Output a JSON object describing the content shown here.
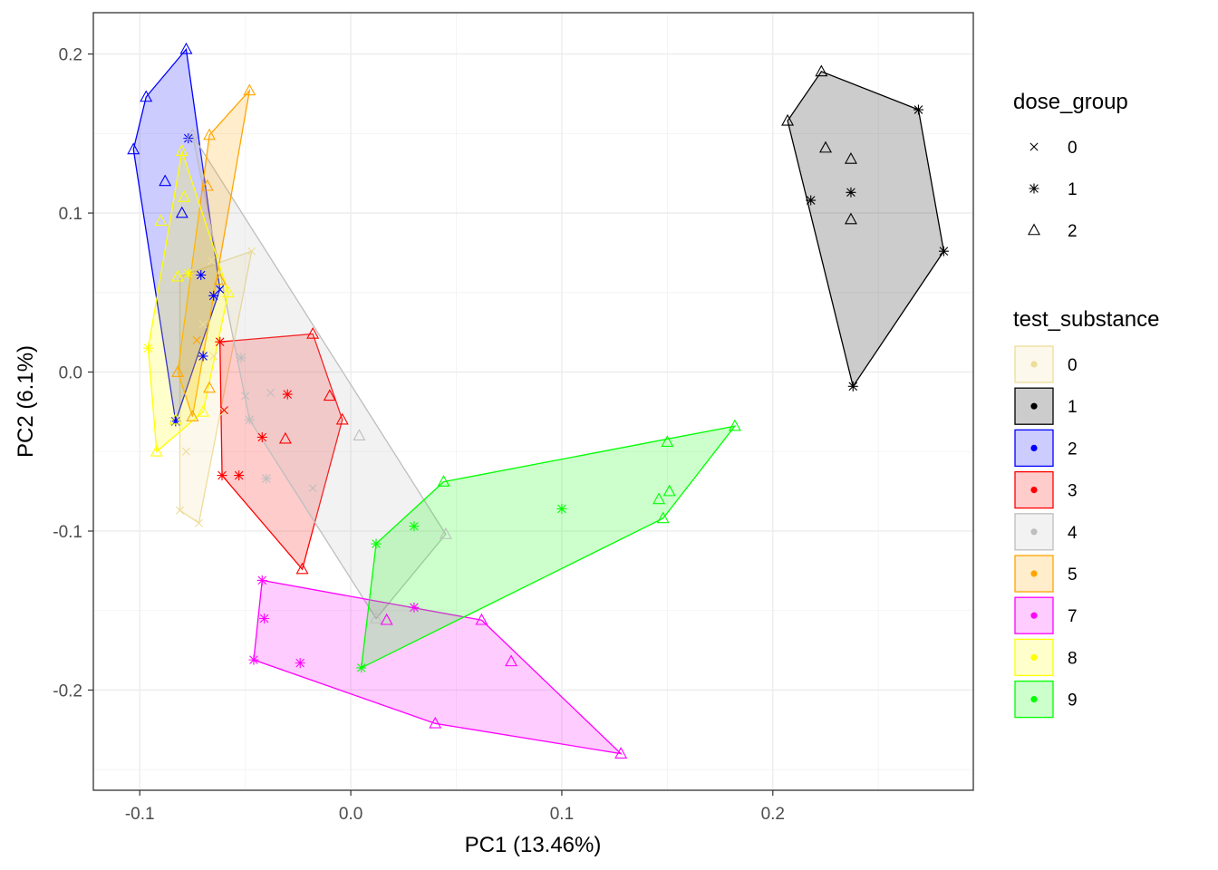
{
  "chart_data": {
    "type": "scatter",
    "xlabel": "PC1 (13.46%)",
    "ylabel": "PC2 (6.1%)",
    "xlim": [
      -0.122,
      0.295
    ],
    "ylim": [
      -0.263,
      0.226
    ],
    "x_ticks": [
      -0.1,
      0.0,
      0.1,
      0.2
    ],
    "x_tick_labels": [
      "-0.1",
      "0.0",
      "0.1",
      "0.2"
    ],
    "y_ticks": [
      -0.2,
      -0.1,
      0.0,
      0.1,
      0.2
    ],
    "y_tick_labels": [
      "-0.2",
      "-0.1",
      "0.0",
      "0.1",
      "0.2"
    ],
    "grid": true,
    "legend_position": "right",
    "legends": [
      {
        "title": "dose_group",
        "kind": "shape",
        "items": [
          {
            "label": "0",
            "shape": "x"
          },
          {
            "label": "1",
            "shape": "asterisk"
          },
          {
            "label": "2",
            "shape": "triangle"
          }
        ]
      },
      {
        "title": "test_substance",
        "kind": "fill",
        "items": [
          {
            "label": "0",
            "color": "#EEDD99"
          },
          {
            "label": "1",
            "color": "#000000"
          },
          {
            "label": "2",
            "color": "#0000FF"
          },
          {
            "label": "3",
            "color": "#FF0000"
          },
          {
            "label": "4",
            "color": "#BEBEBE"
          },
          {
            "label": "5",
            "color": "#FFA500"
          },
          {
            "label": "7",
            "color": "#FF00FF"
          },
          {
            "label": "8",
            "color": "#FFFF00"
          },
          {
            "label": "9",
            "color": "#00FF00"
          }
        ]
      }
    ],
    "series": [
      {
        "name": "0",
        "color": "#EEDD99",
        "hull": [
          [
            -0.081,
            -0.087
          ],
          [
            -0.072,
            -0.095
          ],
          [
            -0.047,
            0.076
          ],
          [
            -0.081,
            0.06
          ]
        ],
        "points": [
          [
            -0.081,
            -0.087,
            "x"
          ],
          [
            -0.072,
            -0.095,
            "x"
          ],
          [
            -0.047,
            0.076,
            "x"
          ],
          [
            -0.081,
            0.06,
            "x"
          ],
          [
            -0.06,
            -0.025,
            "x"
          ],
          [
            -0.078,
            -0.05,
            "x"
          ],
          [
            -0.07,
            0.03,
            "x"
          ],
          [
            -0.065,
            0.01,
            "x"
          ],
          [
            -0.066,
            0.07,
            "x"
          ]
        ]
      },
      {
        "name": "1",
        "color": "#000000",
        "hull": [
          [
            0.207,
            0.158
          ],
          [
            0.223,
            0.189
          ],
          [
            0.269,
            0.165
          ],
          [
            0.281,
            0.076
          ],
          [
            0.238,
            -0.009
          ]
        ],
        "points": [
          [
            0.207,
            0.158,
            "triangle"
          ],
          [
            0.223,
            0.189,
            "triangle"
          ],
          [
            0.269,
            0.165,
            "asterisk"
          ],
          [
            0.281,
            0.076,
            "asterisk"
          ],
          [
            0.238,
            -0.009,
            "asterisk"
          ],
          [
            0.225,
            0.141,
            "triangle"
          ],
          [
            0.237,
            0.134,
            "triangle"
          ],
          [
            0.237,
            0.113,
            "asterisk"
          ],
          [
            0.237,
            0.096,
            "triangle"
          ],
          [
            0.218,
            0.108,
            "asterisk"
          ]
        ]
      },
      {
        "name": "2",
        "color": "#0000FF",
        "hull": [
          [
            -0.103,
            0.14
          ],
          [
            -0.097,
            0.173
          ],
          [
            -0.078,
            0.203
          ],
          [
            -0.062,
            0.052
          ],
          [
            -0.083,
            -0.031
          ]
        ],
        "points": [
          [
            -0.103,
            0.14,
            "triangle"
          ],
          [
            -0.097,
            0.173,
            "triangle"
          ],
          [
            -0.078,
            0.203,
            "triangle"
          ],
          [
            -0.062,
            0.052,
            "x"
          ],
          [
            -0.083,
            -0.031,
            "asterisk"
          ],
          [
            -0.077,
            0.147,
            "asterisk"
          ],
          [
            -0.088,
            0.12,
            "triangle"
          ],
          [
            -0.08,
            0.1,
            "triangle"
          ],
          [
            -0.071,
            0.061,
            "asterisk"
          ],
          [
            -0.065,
            0.048,
            "asterisk"
          ],
          [
            -0.07,
            0.01,
            "asterisk"
          ]
        ]
      },
      {
        "name": "3",
        "color": "#FF0000",
        "hull": [
          [
            -0.062,
            0.019
          ],
          [
            -0.018,
            0.024
          ],
          [
            -0.004,
            -0.03
          ],
          [
            -0.023,
            -0.124
          ],
          [
            -0.061,
            -0.065
          ]
        ],
        "points": [
          [
            -0.062,
            0.019,
            "asterisk"
          ],
          [
            -0.018,
            0.024,
            "triangle"
          ],
          [
            -0.004,
            -0.03,
            "triangle"
          ],
          [
            -0.023,
            -0.124,
            "triangle"
          ],
          [
            -0.061,
            -0.065,
            "asterisk"
          ],
          [
            -0.053,
            -0.065,
            "asterisk"
          ],
          [
            -0.042,
            -0.041,
            "asterisk"
          ],
          [
            -0.031,
            -0.042,
            "triangle"
          ],
          [
            -0.01,
            -0.015,
            "triangle"
          ],
          [
            -0.03,
            -0.014,
            "asterisk"
          ],
          [
            -0.06,
            -0.024,
            "x"
          ]
        ]
      },
      {
        "name": "4",
        "color": "#BEBEBE",
        "hull": [
          [
            -0.075,
            0.149
          ],
          [
            0.045,
            -0.102
          ],
          [
            0.012,
            -0.155
          ],
          [
            -0.048,
            -0.03
          ]
        ],
        "points": [
          [
            -0.075,
            0.149,
            "triangle"
          ],
          [
            0.045,
            -0.102,
            "triangle"
          ],
          [
            0.012,
            -0.155,
            "triangle"
          ],
          [
            -0.048,
            -0.03,
            "asterisk"
          ],
          [
            0.004,
            -0.04,
            "triangle"
          ],
          [
            -0.04,
            -0.067,
            "asterisk"
          ],
          [
            -0.018,
            -0.073,
            "x"
          ],
          [
            -0.052,
            0.009,
            "asterisk"
          ],
          [
            -0.038,
            -0.013,
            "x"
          ],
          [
            -0.05,
            -0.015,
            "x"
          ]
        ]
      },
      {
        "name": "5",
        "color": "#FFA500",
        "hull": [
          [
            -0.067,
            0.149
          ],
          [
            -0.048,
            0.177
          ],
          [
            -0.075,
            -0.028
          ],
          [
            -0.082,
            0.0
          ]
        ],
        "points": [
          [
            -0.067,
            0.149,
            "triangle"
          ],
          [
            -0.048,
            0.177,
            "triangle"
          ],
          [
            -0.075,
            -0.028,
            "triangle"
          ],
          [
            -0.082,
            0.0,
            "triangle"
          ],
          [
            -0.068,
            0.117,
            "triangle"
          ],
          [
            -0.073,
            0.02,
            "x"
          ],
          [
            -0.062,
            0.058,
            "triangle"
          ],
          [
            -0.067,
            -0.01,
            "triangle"
          ]
        ]
      },
      {
        "name": "7",
        "color": "#FF00FF",
        "hull": [
          [
            -0.042,
            -0.131
          ],
          [
            0.062,
            -0.156
          ],
          [
            0.128,
            -0.24
          ],
          [
            0.04,
            -0.221
          ],
          [
            -0.046,
            -0.181
          ]
        ],
        "points": [
          [
            -0.042,
            -0.131,
            "asterisk"
          ],
          [
            0.062,
            -0.156,
            "triangle"
          ],
          [
            0.128,
            -0.24,
            "triangle"
          ],
          [
            0.04,
            -0.221,
            "triangle"
          ],
          [
            -0.046,
            -0.181,
            "asterisk"
          ],
          [
            -0.041,
            -0.155,
            "asterisk"
          ],
          [
            -0.024,
            -0.183,
            "asterisk"
          ],
          [
            0.017,
            -0.156,
            "triangle"
          ],
          [
            0.03,
            -0.148,
            "asterisk"
          ],
          [
            0.076,
            -0.182,
            "triangle"
          ]
        ]
      },
      {
        "name": "8",
        "color": "#FFFF00",
        "hull": [
          [
            -0.096,
            0.015
          ],
          [
            -0.08,
            0.139
          ],
          [
            -0.058,
            0.05
          ],
          [
            -0.07,
            -0.025
          ],
          [
            -0.092,
            -0.05
          ]
        ],
        "points": [
          [
            -0.096,
            0.015,
            "asterisk"
          ],
          [
            -0.08,
            0.139,
            "triangle"
          ],
          [
            -0.058,
            0.05,
            "triangle"
          ],
          [
            -0.07,
            -0.025,
            "triangle"
          ],
          [
            -0.092,
            -0.05,
            "triangle"
          ],
          [
            -0.09,
            0.095,
            "triangle"
          ],
          [
            -0.079,
            0.11,
            "triangle"
          ],
          [
            -0.082,
            0.06,
            "triangle"
          ],
          [
            -0.077,
            0.062,
            "asterisk"
          ],
          [
            -0.083,
            -0.03,
            "triangle"
          ]
        ]
      },
      {
        "name": "9",
        "color": "#00FF00",
        "hull": [
          [
            0.012,
            -0.108
          ],
          [
            0.044,
            -0.069
          ],
          [
            0.182,
            -0.034
          ],
          [
            0.148,
            -0.092
          ],
          [
            0.005,
            -0.186
          ]
        ],
        "points": [
          [
            0.012,
            -0.108,
            "asterisk"
          ],
          [
            0.044,
            -0.069,
            "triangle"
          ],
          [
            0.182,
            -0.034,
            "triangle"
          ],
          [
            0.148,
            -0.092,
            "triangle"
          ],
          [
            0.005,
            -0.186,
            "asterisk"
          ],
          [
            0.15,
            -0.044,
            "triangle"
          ],
          [
            0.146,
            -0.08,
            "triangle"
          ],
          [
            0.151,
            -0.075,
            "triangle"
          ],
          [
            0.1,
            -0.086,
            "asterisk"
          ],
          [
            0.03,
            -0.097,
            "asterisk"
          ]
        ]
      }
    ]
  }
}
